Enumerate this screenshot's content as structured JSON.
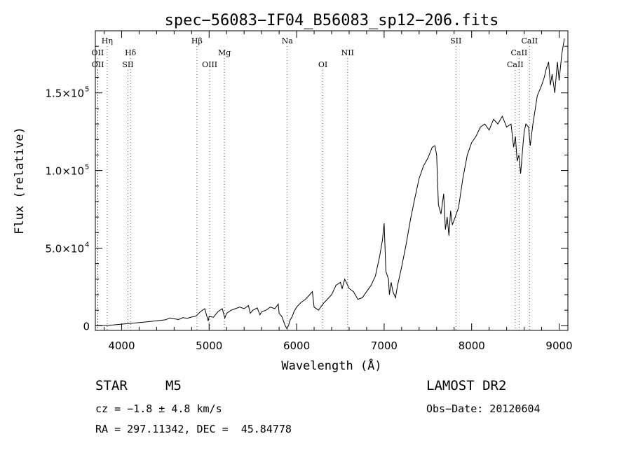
{
  "chart_data": {
    "type": "line",
    "title": "spec−56083−IF04_B56083_sp12−206.fits",
    "xlabel": "Wavelength (Å)",
    "ylabel": "Flux (relative)",
    "xlim": [
      3700,
      9100
    ],
    "ylim": [
      -3000,
      190000
    ],
    "x_ticks": [
      {
        "value": 4000,
        "label": "4000"
      },
      {
        "value": 5000,
        "label": "5000"
      },
      {
        "value": 6000,
        "label": "6000"
      },
      {
        "value": 7000,
        "label": "7000"
      },
      {
        "value": 8000,
        "label": "8000"
      },
      {
        "value": 9000,
        "label": "9000"
      }
    ],
    "y_ticks": [
      {
        "value": 0,
        "label": "0",
        "sup": ""
      },
      {
        "value": 50000,
        "label": "5.0×10",
        "sup": "4"
      },
      {
        "value": 100000,
        "label": "1.0×10",
        "sup": "5"
      },
      {
        "value": 150000,
        "label": "1.5×10",
        "sup": "5"
      }
    ],
    "line_color": "#000000",
    "grid": false,
    "lines": [
      {
        "label": "Hη",
        "wavelength": 3835,
        "row": 0
      },
      {
        "label": "OII",
        "wavelength": 3727,
        "row": 1
      },
      {
        "label": "OII",
        "wavelength": 3729,
        "row": 2
      },
      {
        "label": "Hδ",
        "wavelength": 4102,
        "row": 1
      },
      {
        "label": "SII",
        "wavelength": 4072,
        "row": 2
      },
      {
        "label": "Hβ",
        "wavelength": 4861,
        "row": 0
      },
      {
        "label": "OIII",
        "wavelength": 5007,
        "row": 2
      },
      {
        "label": "Mg",
        "wavelength": 5175,
        "row": 1
      },
      {
        "label": "Na",
        "wavelength": 5893,
        "row": 0
      },
      {
        "label": "OI",
        "wavelength": 6300,
        "row": 2
      },
      {
        "label": "NII",
        "wavelength": 6583,
        "row": 1
      },
      {
        "label": "SII",
        "wavelength": 7820,
        "row": 0
      },
      {
        "label": "CaII",
        "wavelength": 8498,
        "row": 2
      },
      {
        "label": "CaII",
        "wavelength": 8542,
        "row": 1
      },
      {
        "label": "CaII",
        "wavelength": 8662,
        "row": 0
      }
    ],
    "spectrum": {
      "x": [
        3700,
        3800,
        3900,
        4000,
        4100,
        4200,
        4300,
        4400,
        4500,
        4550,
        4600,
        4650,
        4700,
        4750,
        4800,
        4850,
        4900,
        4950,
        4990,
        5000,
        5050,
        5100,
        5150,
        5180,
        5200,
        5250,
        5300,
        5350,
        5400,
        5450,
        5470,
        5500,
        5550,
        5580,
        5600,
        5650,
        5700,
        5750,
        5790,
        5800,
        5830,
        5850,
        5870,
        5890,
        5910,
        5920,
        5950,
        5970,
        6000,
        6050,
        6100,
        6150,
        6180,
        6200,
        6250,
        6300,
        6350,
        6400,
        6450,
        6500,
        6520,
        6550,
        6600,
        6650,
        6700,
        6750,
        6800,
        6850,
        6900,
        6950,
        6980,
        7000,
        7020,
        7050,
        7060,
        7080,
        7100,
        7130,
        7150,
        7200,
        7250,
        7300,
        7350,
        7400,
        7450,
        7500,
        7550,
        7580,
        7600,
        7620,
        7650,
        7680,
        7700,
        7720,
        7740,
        7760,
        7780,
        7800,
        7850,
        7900,
        7950,
        8000,
        8050,
        8100,
        8150,
        8200,
        8250,
        8300,
        8350,
        8400,
        8450,
        8480,
        8500,
        8520,
        8540,
        8560,
        8580,
        8600,
        8620,
        8650,
        8670,
        8700,
        8750,
        8800,
        8830,
        8850,
        8880,
        8900,
        8920,
        8950,
        8980,
        9000,
        9030,
        9060
      ],
      "y": [
        0,
        200,
        500,
        1000,
        1500,
        2000,
        2600,
        3200,
        3800,
        5000,
        4500,
        4000,
        5200,
        4800,
        5600,
        6200,
        9000,
        11000,
        3000,
        6000,
        5500,
        9000,
        11000,
        5000,
        8000,
        10000,
        11000,
        12000,
        11000,
        13000,
        8000,
        10000,
        11500,
        7000,
        9000,
        10000,
        12000,
        11000,
        14000,
        8000,
        6000,
        3000,
        0,
        -2000,
        500,
        3000,
        6000,
        9000,
        12000,
        15000,
        17000,
        20000,
        22000,
        12000,
        10000,
        14000,
        17000,
        20000,
        26000,
        28000,
        24000,
        30000,
        24000,
        22000,
        17000,
        18000,
        22000,
        26000,
        32000,
        45000,
        55000,
        66000,
        35000,
        30000,
        20000,
        28000,
        22000,
        18000,
        25000,
        38000,
        52000,
        68000,
        82000,
        95000,
        103000,
        108000,
        115000,
        116000,
        110000,
        78000,
        72000,
        85000,
        62000,
        70000,
        58000,
        74000,
        65000,
        68000,
        76000,
        95000,
        110000,
        118000,
        122000,
        128000,
        130000,
        126000,
        133000,
        130000,
        135000,
        128000,
        130000,
        115000,
        122000,
        106000,
        110000,
        98000,
        112000,
        125000,
        130000,
        128000,
        116000,
        130000,
        148000,
        155000,
        160000,
        165000,
        170000,
        155000,
        162000,
        150000,
        170000,
        158000,
        175000,
        185000
      ]
    }
  },
  "info": {
    "object_type": "STAR",
    "subclass": "M5",
    "survey": "LAMOST DR2",
    "cz": "cz = −1.8 ± 4.8 km/s",
    "obs_date": "Obs−Date: 20120604",
    "coords": "RA = 297.11342, DEC =  45.84778"
  }
}
